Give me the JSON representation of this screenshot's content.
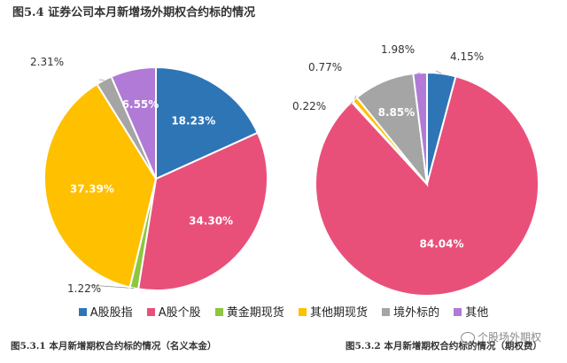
{
  "figure_title": "图5.4 证券公司本月新增场外期权合约标的情况",
  "legend": [
    {
      "label": "A股股指",
      "color": "#2e75b6"
    },
    {
      "label": "A股个股",
      "color": "#e8507a"
    },
    {
      "label": "黄金期现货",
      "color": "#8dc63f"
    },
    {
      "label": "其他期现货",
      "color": "#ffc000"
    },
    {
      "label": "境外标的",
      "color": "#a5a5a5"
    },
    {
      "label": "其他",
      "color": "#b07ad6"
    }
  ],
  "captions": {
    "left": "图5.3.1 本月新增期权合约标的情况（名义本金）",
    "right": "图5.3.2 本月新增期权合约标的情况（期权费）"
  },
  "watermark": "个股场外期权",
  "chart_data": [
    {
      "type": "pie",
      "categories": [
        "A股股指",
        "A股个股",
        "黄金期现货",
        "其他期现货",
        "境外标的",
        "其他"
      ],
      "values": [
        18.23,
        34.3,
        1.22,
        37.39,
        2.31,
        6.55
      ],
      "labels": [
        "18.23%",
        "34.30%",
        "1.22%",
        "37.39%",
        "2.31%",
        "6.55%"
      ],
      "start_angle": "12 o'clock",
      "direction": "clockwise",
      "legend_position": "bottom"
    },
    {
      "type": "pie",
      "categories": [
        "A股股指",
        "A股个股",
        "黄金期现货",
        "其他期现货",
        "境外标的",
        "其他"
      ],
      "values": [
        4.15,
        84.04,
        0.22,
        0.77,
        8.85,
        1.98
      ],
      "labels": [
        "4.15%",
        "84.04%",
        "0.22%",
        "0.77%",
        "8.85%",
        "1.98%"
      ],
      "start_angle": "12 o'clock",
      "direction": "clockwise",
      "legend_position": "bottom"
    }
  ]
}
